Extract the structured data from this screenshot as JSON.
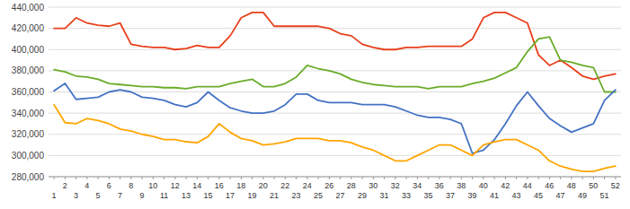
{
  "chart_data": {
    "type": "line",
    "x": [
      1,
      2,
      3,
      4,
      5,
      6,
      7,
      8,
      9,
      10,
      11,
      12,
      13,
      14,
      15,
      16,
      17,
      18,
      19,
      20,
      21,
      22,
      23,
      24,
      25,
      26,
      27,
      28,
      29,
      30,
      31,
      32,
      33,
      34,
      35,
      36,
      37,
      38,
      39,
      40,
      41,
      42,
      43,
      44,
      45,
      46,
      47,
      48,
      49,
      50,
      51,
      52
    ],
    "series": [
      {
        "color": "#E8401C",
        "values": [
          420000,
          420000,
          430000,
          425000,
          423000,
          422000,
          425000,
          405000,
          403000,
          402000,
          402000,
          400000,
          401000,
          404000,
          402000,
          402000,
          413000,
          430000,
          435000,
          435000,
          422000,
          422000,
          422000,
          422000,
          422000,
          420000,
          415000,
          413000,
          405000,
          402000,
          400000,
          400000,
          402000,
          402000,
          403000,
          403000,
          403000,
          403000,
          410000,
          430000,
          435000,
          435000,
          430000,
          425000,
          395000,
          385000,
          390000,
          383000,
          375000,
          372000,
          375000,
          377000
        ]
      },
      {
        "color": "#6AAC28",
        "values": [
          381000,
          379000,
          375000,
          374000,
          372000,
          368000,
          367000,
          366000,
          365000,
          365000,
          364000,
          364000,
          363000,
          365000,
          365000,
          365000,
          368000,
          370000,
          372000,
          365000,
          365000,
          368000,
          374000,
          385000,
          382000,
          380000,
          377000,
          372000,
          369000,
          367000,
          366000,
          365000,
          365000,
          365000,
          363000,
          365000,
          365000,
          365000,
          368000,
          370000,
          373000,
          378000,
          383000,
          398000,
          410000,
          412000,
          390000,
          388000,
          385000,
          383000,
          360000,
          360000
        ]
      },
      {
        "color": "#4472C4",
        "values": [
          361000,
          368000,
          353000,
          354000,
          355000,
          360000,
          362000,
          360000,
          355000,
          354000,
          352000,
          348000,
          346000,
          350000,
          360000,
          352000,
          345000,
          342000,
          340000,
          340000,
          342000,
          348000,
          358000,
          358000,
          352000,
          350000,
          350000,
          350000,
          348000,
          348000,
          348000,
          346000,
          342000,
          338000,
          336000,
          336000,
          334000,
          330000,
          302000,
          305000,
          315000,
          330000,
          347000,
          360000,
          347000,
          335000,
          328000,
          322000,
          326000,
          330000,
          352000,
          362000
        ]
      },
      {
        "color": "#FFA500",
        "values": [
          348000,
          331000,
          330000,
          335000,
          333000,
          330000,
          325000,
          323000,
          320000,
          318000,
          315000,
          315000,
          313000,
          312000,
          318000,
          330000,
          322000,
          316000,
          314000,
          310000,
          311000,
          313000,
          316000,
          316000,
          316000,
          314000,
          314000,
          312000,
          308000,
          305000,
          300000,
          295000,
          295000,
          300000,
          305000,
          310000,
          310000,
          305000,
          300000,
          310000,
          313000,
          315000,
          315000,
          310000,
          305000,
          295000,
          290000,
          287000,
          285000,
          285000,
          288000,
          290000
        ]
      }
    ],
    "xlim": [
      0.5,
      52.5
    ],
    "xticks": [
      1,
      2,
      3,
      4,
      5,
      6,
      7,
      8,
      9,
      10,
      11,
      12,
      13,
      14,
      15,
      16,
      17,
      18,
      19,
      20,
      21,
      22,
      23,
      24,
      25,
      26,
      27,
      28,
      29,
      30,
      31,
      32,
      33,
      34,
      35,
      36,
      37,
      38,
      39,
      40,
      41,
      42,
      43,
      44,
      45,
      46,
      47,
      48,
      49,
      50,
      51,
      52
    ],
    "ylim": [
      280000,
      440000
    ],
    "yticks": [
      {
        "value": 280000,
        "label": "280,000"
      },
      {
        "value": 300000,
        "label": "300,000"
      },
      {
        "value": 320000,
        "label": "320,000"
      },
      {
        "value": 340000,
        "label": "340,000"
      },
      {
        "value": 360000,
        "label": "360,000"
      },
      {
        "value": 380000,
        "label": "380,000"
      },
      {
        "value": 400000,
        "label": "400,000"
      },
      {
        "value": 420000,
        "label": "420,000"
      },
      {
        "value": 440000,
        "label": "440,000"
      }
    ],
    "grid": true
  }
}
